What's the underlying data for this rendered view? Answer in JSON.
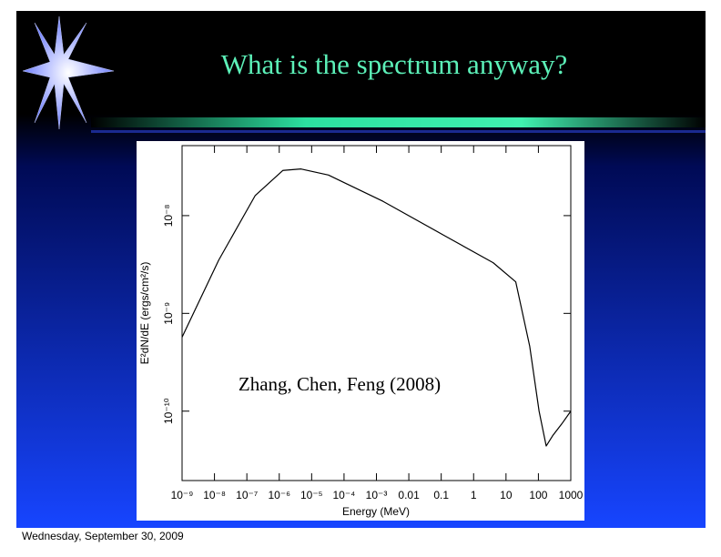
{
  "chart_data": {
    "type": "line",
    "title": "What is the spectrum anyway?",
    "annotation": "Zhang, Chen, Feng (2008)",
    "xlabel": "Energy (MeV)",
    "ylabel": "E²dN/dE (ergs/cm²/s)",
    "xscale": "log",
    "yscale": "log",
    "xlim": [
      1e-09,
      1000
    ],
    "ylim": [
      1.95e-11,
      5.2e-08
    ],
    "xticks": [
      {
        "value": 1e-09,
        "label": "10⁻⁹"
      },
      {
        "value": 1e-08,
        "label": "10⁻⁸"
      },
      {
        "value": 1e-07,
        "label": "10⁻⁷"
      },
      {
        "value": 1e-06,
        "label": "10⁻⁶"
      },
      {
        "value": 1e-05,
        "label": "10⁻⁵"
      },
      {
        "value": 0.0001,
        "label": "10⁻⁴"
      },
      {
        "value": 0.001,
        "label": "10⁻³"
      },
      0.01,
      0.1,
      1,
      10,
      100,
      1000
    ],
    "yticks": [
      {
        "value": 1e-10,
        "label": "10⁻¹⁰"
      },
      {
        "value": 1e-09,
        "label": "10⁻⁹"
      },
      {
        "value": 1e-08,
        "label": "10⁻⁸"
      }
    ],
    "series": [
      {
        "color": "#000000",
        "x": [
          1e-09,
          1.35e-08,
          1.8e-07,
          1.3e-06,
          4.7e-06,
          3.3e-05,
          0.0016,
          0.12,
          4.0,
          20,
          54,
          105,
          174,
          275,
          525,
          1000
        ],
        "values": [
          5.7e-10,
          3.5e-09,
          1.6e-08,
          2.9e-08,
          3e-08,
          2.6e-08,
          1.4e-08,
          6.3e-09,
          3.3e-09,
          2.1e-09,
          4.6e-10,
          1e-10,
          4.4e-11,
          5.6e-11,
          7.4e-11,
          1e-10
        ]
      }
    ]
  },
  "footer": "Wednesday, September 30, 2009"
}
